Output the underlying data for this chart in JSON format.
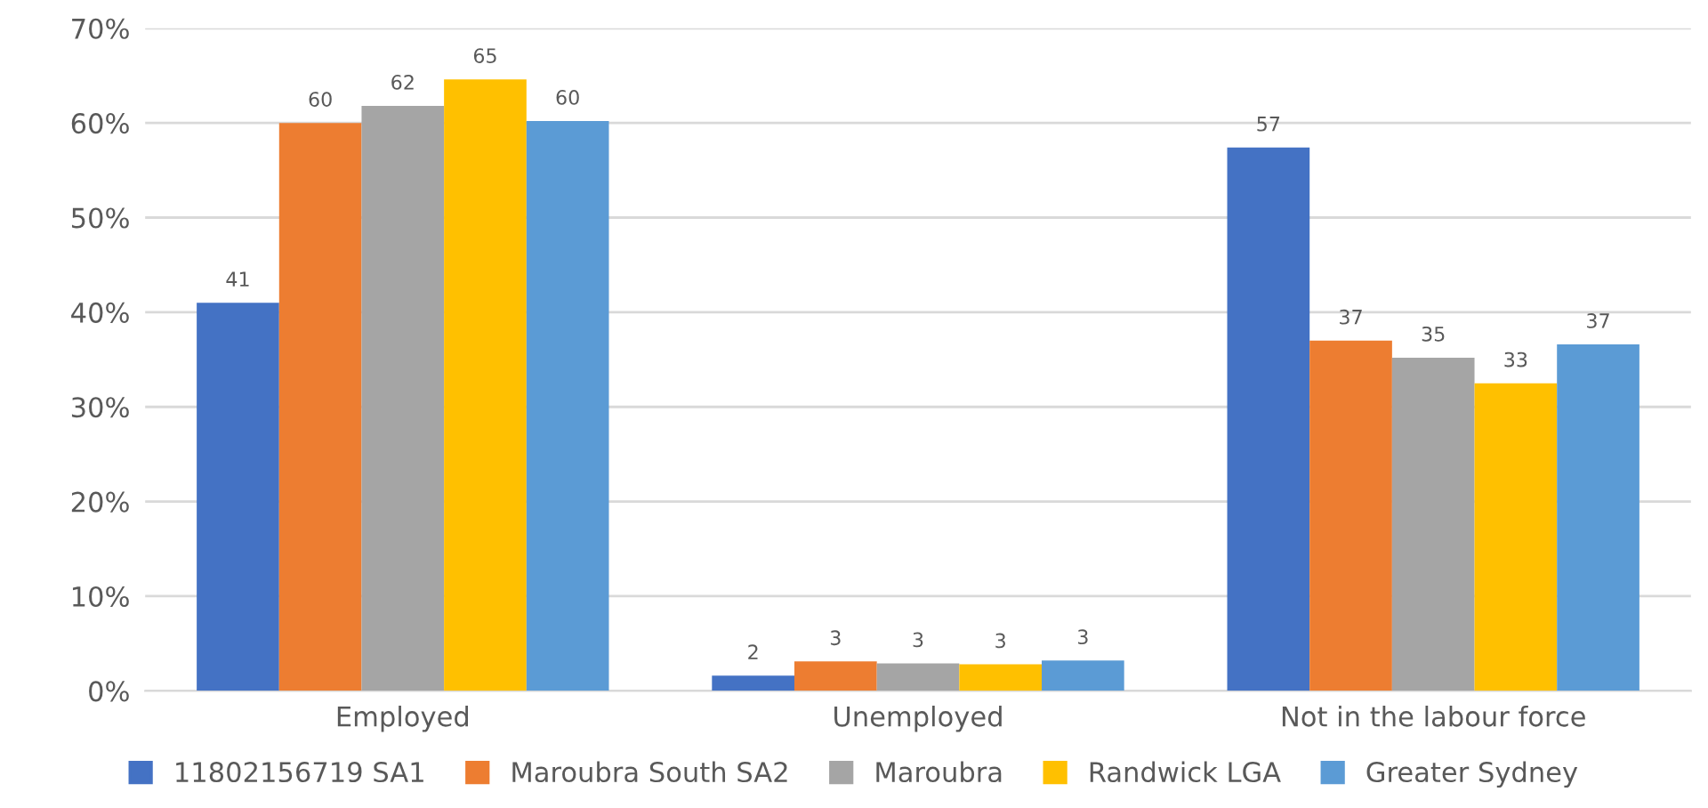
{
  "chart_data": {
    "type": "bar",
    "categories": [
      "Employed",
      "Unemployed",
      "Not in the labour force"
    ],
    "series": [
      {
        "name": "11802156719 SA1",
        "color": "#4472c4",
        "values": [
          41.0,
          1.6,
          57.4
        ],
        "value_labels": [
          "41",
          "2",
          "57"
        ]
      },
      {
        "name": "Maroubra South SA2",
        "color": "#ed7d31",
        "values": [
          60.0,
          3.1,
          37.0
        ],
        "value_labels": [
          "60",
          "3",
          "37"
        ]
      },
      {
        "name": "Maroubra",
        "color": "#a5a5a5",
        "values": [
          61.8,
          2.9,
          35.2
        ],
        "value_labels": [
          "62",
          "3",
          "35"
        ]
      },
      {
        "name": "Randwick LGA",
        "color": "#ffc000",
        "values": [
          64.6,
          2.8,
          32.5
        ],
        "value_labels": [
          "65",
          "3",
          "33"
        ]
      },
      {
        "name": "Greater Sydney",
        "color": "#5b9bd5",
        "values": [
          60.2,
          3.2,
          36.6
        ],
        "value_labels": [
          "60",
          "3",
          "37"
        ]
      }
    ],
    "ylim": [
      0,
      70
    ],
    "yticks": [
      {
        "value": 0,
        "label": "0%"
      },
      {
        "value": 10,
        "label": "10%"
      },
      {
        "value": 20,
        "label": "20%"
      },
      {
        "value": 30,
        "label": "30%"
      },
      {
        "value": 40,
        "label": "40%"
      },
      {
        "value": 50,
        "label": "50%"
      },
      {
        "value": 60,
        "label": "60%"
      },
      {
        "value": 70,
        "label": "70%"
      }
    ],
    "grid": "y",
    "legend": "bottom"
  }
}
